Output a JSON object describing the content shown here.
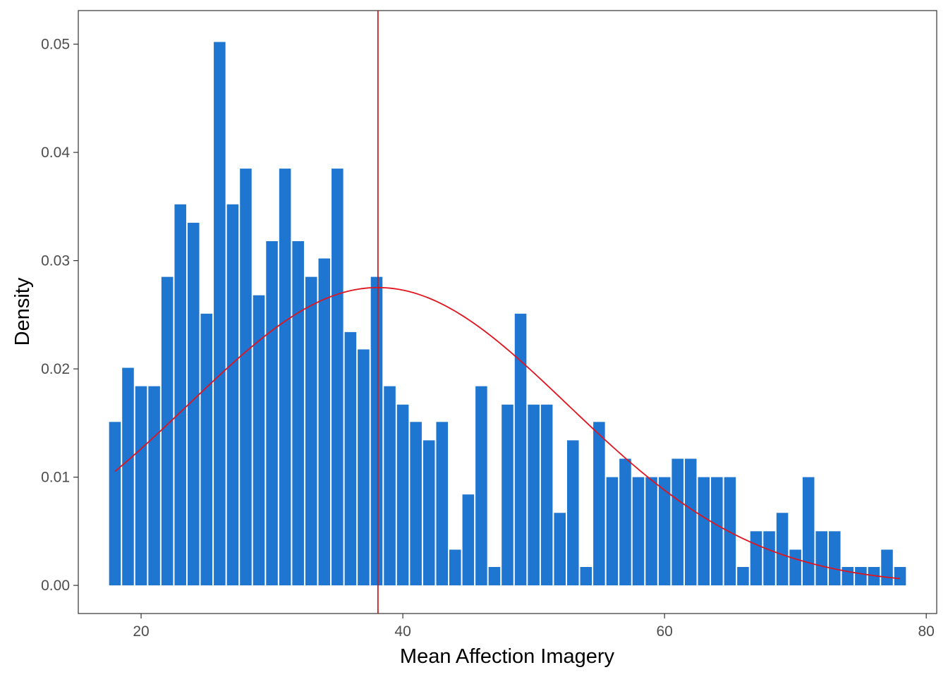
{
  "chart_data": {
    "type": "bar",
    "title": "",
    "xlabel": "Mean Affection Imagery",
    "ylabel": "Density",
    "xlim": [
      15.2,
      80.8
    ],
    "ylim": [
      -0.0026,
      0.0531
    ],
    "x_ticks": [
      {
        "value": 20,
        "label": "20"
      },
      {
        "value": 40,
        "label": "40"
      },
      {
        "value": 60,
        "label": "60"
      },
      {
        "value": 80,
        "label": "80"
      }
    ],
    "y_ticks": [
      {
        "value": 0.0,
        "label": "0.00"
      },
      {
        "value": 0.01,
        "label": "0.01"
      },
      {
        "value": 0.02,
        "label": "0.02"
      },
      {
        "value": 0.03,
        "label": "0.03"
      },
      {
        "value": 0.04,
        "label": "0.04"
      },
      {
        "value": 0.05,
        "label": "0.05"
      }
    ],
    "grid": false,
    "bin_start": 17.5,
    "bin_width": 1.0,
    "bar_color": "#1e76d0",
    "density": [
      0.0151,
      0.0201,
      0.0184,
      0.0184,
      0.0285,
      0.0352,
      0.0335,
      0.0251,
      0.0502,
      0.0352,
      0.0385,
      0.0268,
      0.0318,
      0.0385,
      0.0318,
      0.0285,
      0.0302,
      0.0385,
      0.0234,
      0.0218,
      0.0285,
      0.0184,
      0.0167,
      0.0151,
      0.0134,
      0.0151,
      0.0033,
      0.0084,
      0.0184,
      0.0017,
      0.0167,
      0.0251,
      0.0167,
      0.0167,
      0.0067,
      0.0134,
      0.0017,
      0.0151,
      0.01,
      0.0117,
      0.01,
      0.01,
      0.01,
      0.0117,
      0.0117,
      0.01,
      0.01,
      0.01,
      0.0017,
      0.005,
      0.005,
      0.0067,
      0.0033,
      0.01,
      0.005,
      0.005,
      0.0017,
      0.0017,
      0.0017,
      0.0033,
      0.0017
    ],
    "normal_curve": {
      "color": "#e0141e",
      "mean": 38.1,
      "sd": 14.5,
      "x_range": [
        18,
        78
      ]
    },
    "mean_line": {
      "value": 38.1,
      "color": "#cc1a1a"
    }
  }
}
